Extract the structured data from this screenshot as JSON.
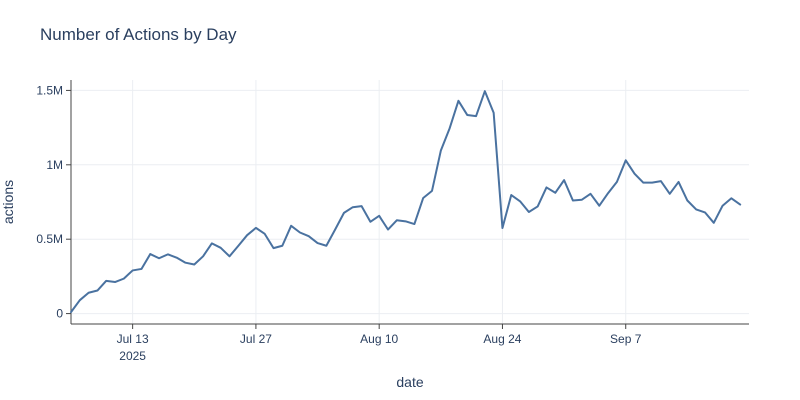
{
  "chart_data": {
    "type": "line",
    "title": "Number of Actions by Day",
    "xlabel": "date",
    "ylabel": "actions",
    "x_start": "2025-07-06",
    "x_range": [
      "2025-07-06",
      "2025-09-21"
    ],
    "ylim": [
      -70000,
      1570000
    ],
    "grid": true,
    "legend": "none",
    "line_color": "#4a72a0",
    "x_ticks": [
      {
        "date": "2025-07-13",
        "label": "Jul 13",
        "sublabel": "2025"
      },
      {
        "date": "2025-07-27",
        "label": "Jul 27",
        "sublabel": ""
      },
      {
        "date": "2025-08-10",
        "label": "Aug 10",
        "sublabel": ""
      },
      {
        "date": "2025-08-24",
        "label": "Aug 24",
        "sublabel": ""
      },
      {
        "date": "2025-09-07",
        "label": "Sep 7",
        "sublabel": ""
      }
    ],
    "y_ticks": [
      {
        "value": 0,
        "label": "0"
      },
      {
        "value": 500000,
        "label": "0.5M"
      },
      {
        "value": 1000000,
        "label": "1M"
      },
      {
        "value": 1500000,
        "label": "1.5M"
      }
    ],
    "series": [
      {
        "values": [
          10000,
          90000,
          140000,
          155000,
          220000,
          212000,
          235000,
          290000,
          300000,
          400000,
          372000,
          398000,
          376000,
          342000,
          330000,
          385000,
          472000,
          442000,
          385000,
          455000,
          527000,
          576000,
          536000,
          440000,
          456000,
          590000,
          545000,
          520000,
          474000,
          456000,
          565000,
          677000,
          715000,
          722000,
          617000,
          657000,
          565000,
          627000,
          620000,
          602000,
          777000,
          825000,
          1095000,
          1245000,
          1430000,
          1335000,
          1327000,
          1495000,
          1350000,
          575000,
          797000,
          755000,
          683000,
          720000,
          848000,
          812000,
          897000,
          760000,
          765000,
          805000,
          725000,
          810000,
          885000,
          1030000,
          940000,
          880000,
          880000,
          890000,
          805000,
          885000,
          760000,
          700000,
          680000,
          610000,
          725000,
          775000,
          733000
        ]
      }
    ]
  }
}
